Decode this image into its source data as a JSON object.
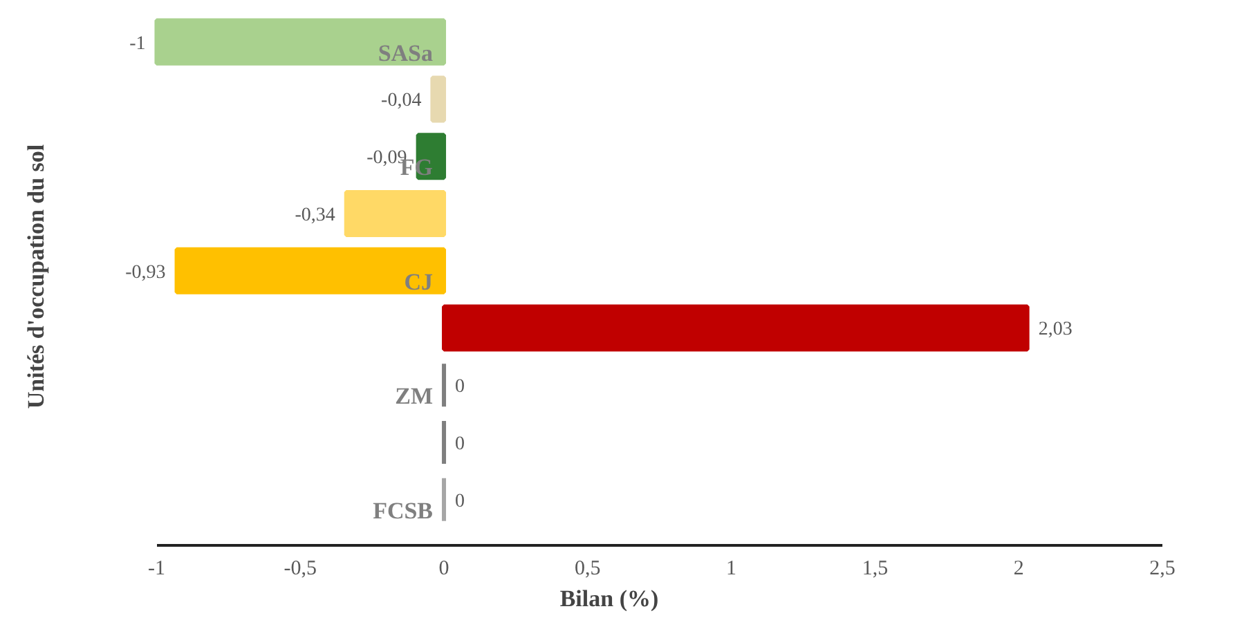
{
  "chart_data": {
    "type": "bar",
    "orientation": "horizontal",
    "xlabel": "Bilan (%)",
    "ylabel": "Unités d'occupation du sol",
    "categories": [
      "SASa",
      null,
      "FG",
      null,
      "CJ",
      null,
      "ZM",
      null,
      "FCSB"
    ],
    "values": [
      -1,
      -0.04,
      -0.09,
      -0.34,
      -0.93,
      2.03,
      0,
      0,
      0
    ],
    "colors": [
      "#a9d18e",
      "#e7d9b0",
      "#2e7d32",
      "#ffd966",
      "#ffc000",
      "#c00000",
      "#7f7f7f",
      "#7f7f7f",
      "#a6a6a6"
    ],
    "value_labels": [
      "-1",
      "-0,04",
      "-0,09",
      "-0,34",
      "-0,93",
      "2,03",
      "0",
      "0",
      "0"
    ],
    "xlim": [
      -1,
      2.5
    ],
    "xticks": [
      {
        "value": -1,
        "label": "-1"
      },
      {
        "value": -0.5,
        "label": "-0,5"
      },
      {
        "value": 0,
        "label": "0"
      },
      {
        "value": 0.5,
        "label": "0,5"
      },
      {
        "value": 1,
        "label": "1"
      },
      {
        "value": 1.5,
        "label": "1,5"
      },
      {
        "value": 2,
        "label": "2"
      },
      {
        "value": 2.5,
        "label": "2,5"
      }
    ],
    "grid": false
  }
}
